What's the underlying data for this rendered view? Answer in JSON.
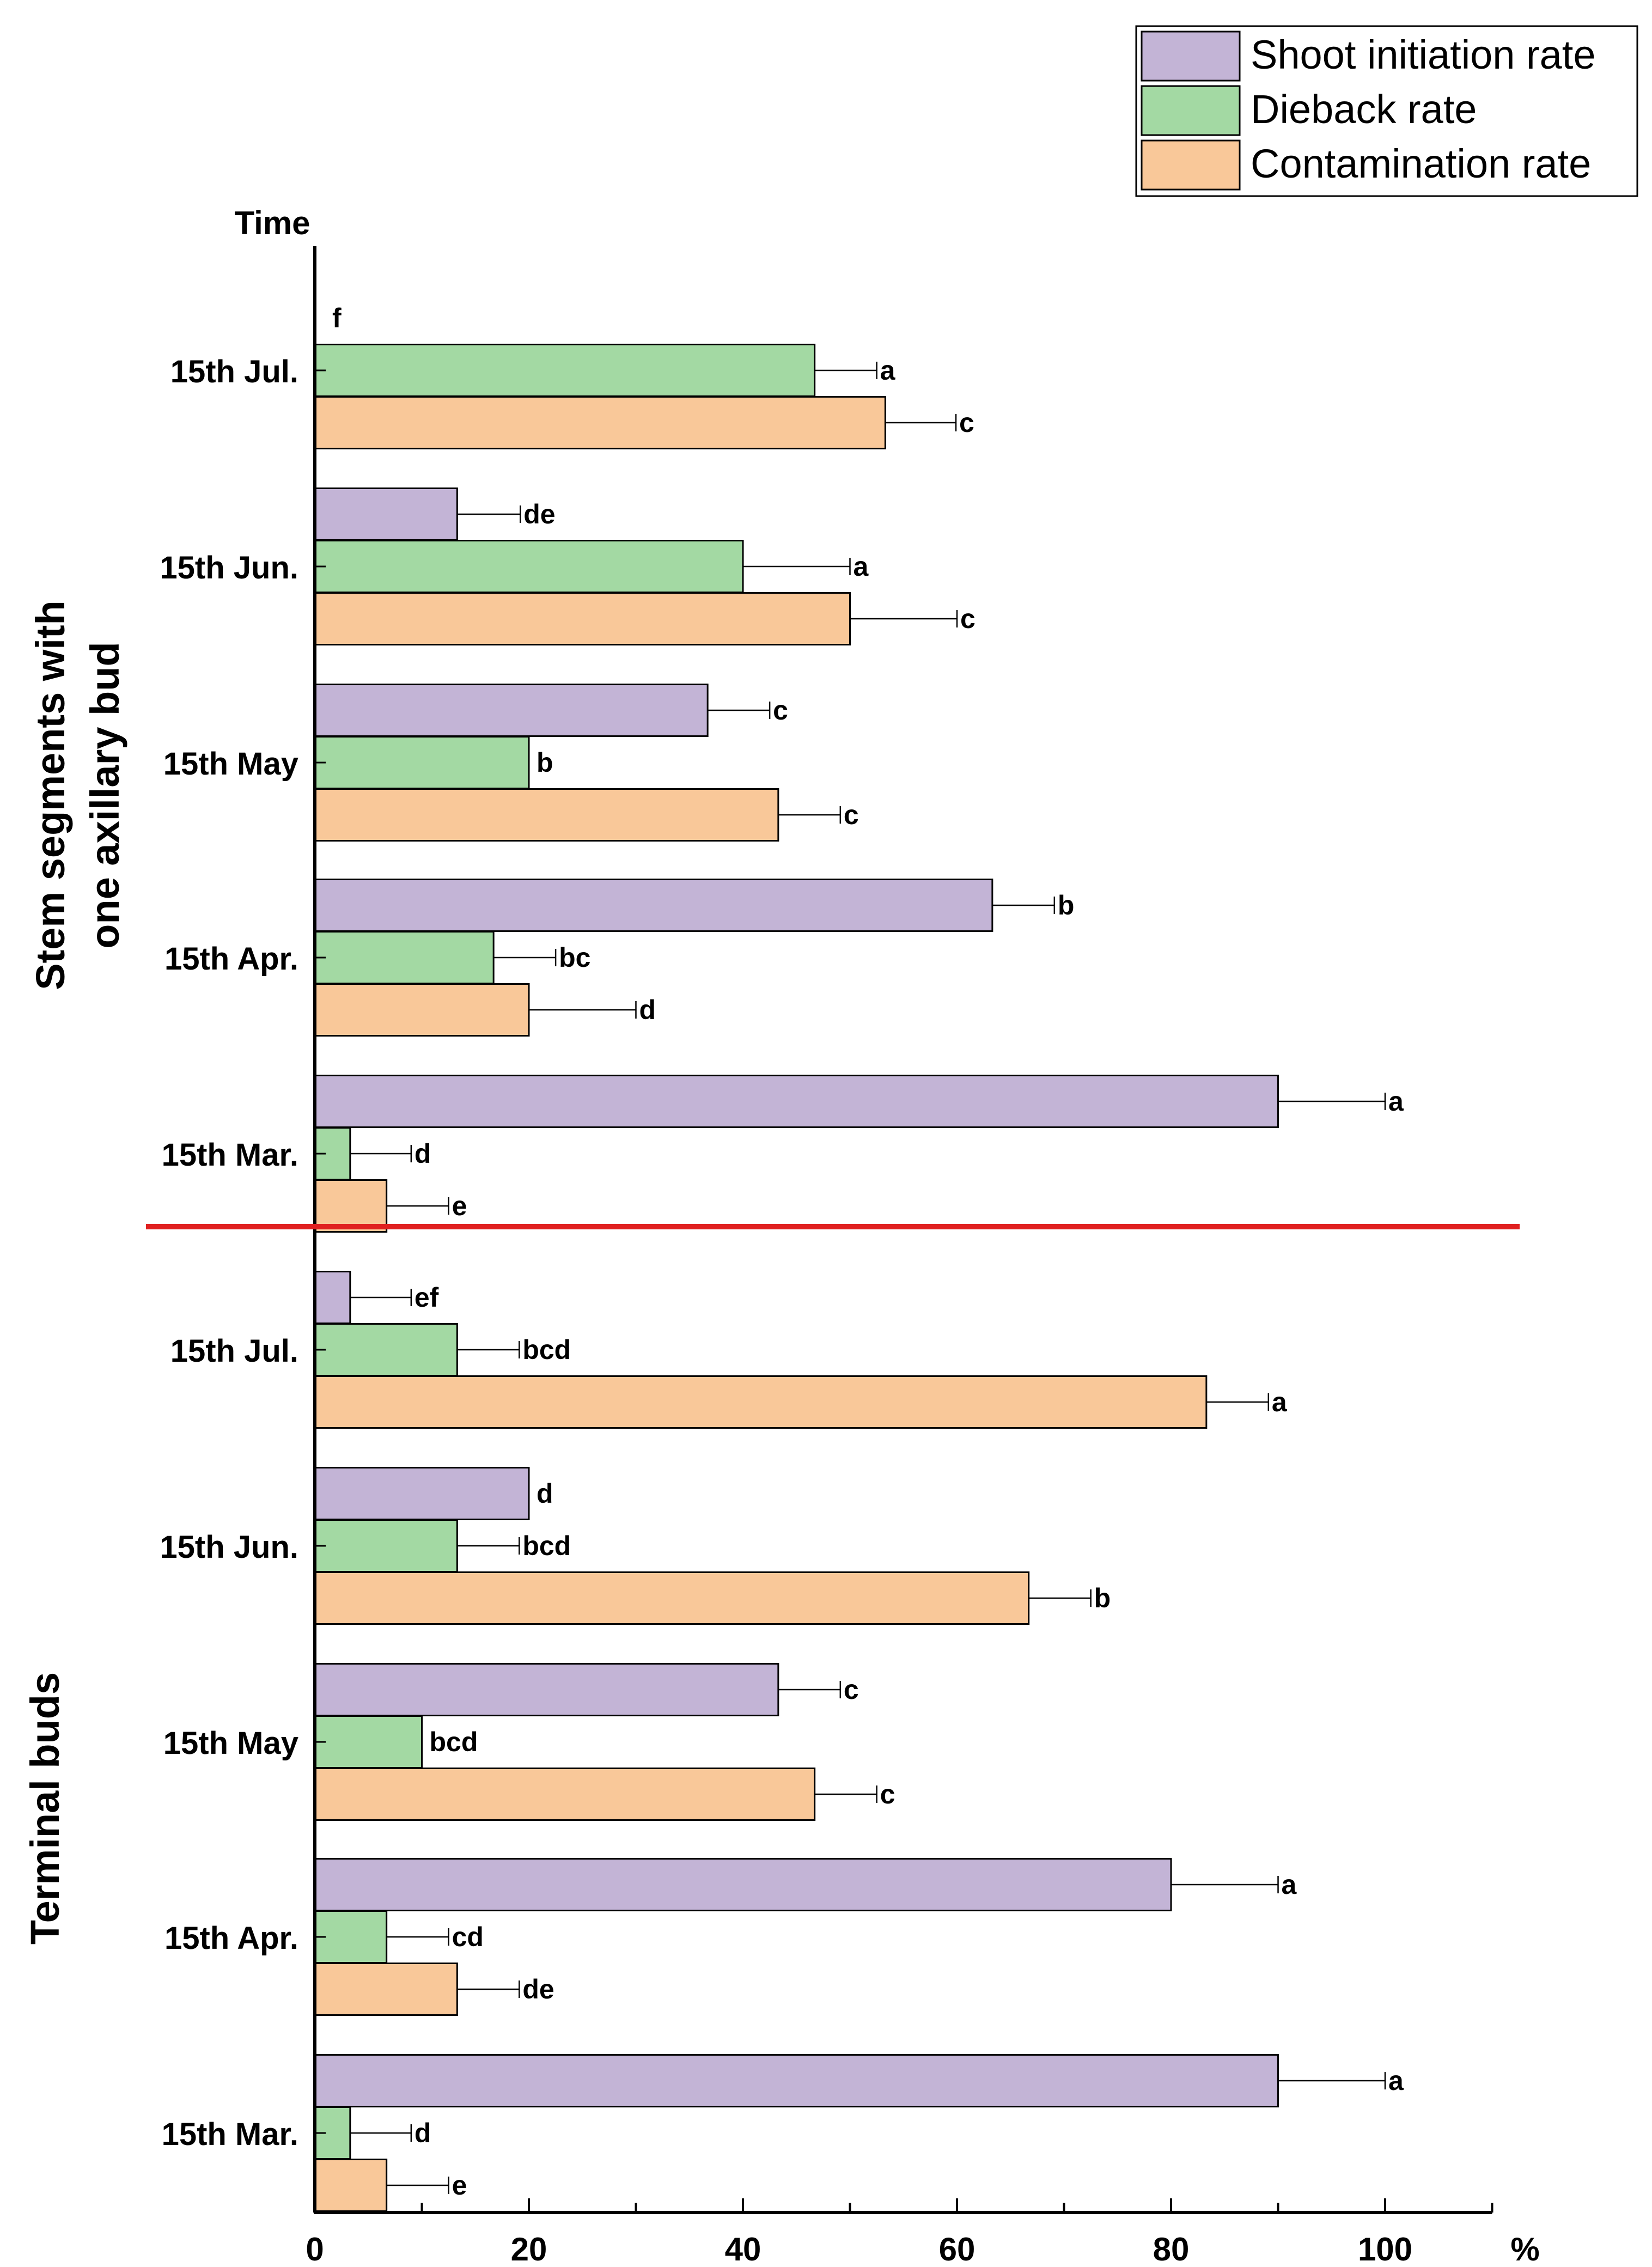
{
  "chart_data": {
    "type": "bar",
    "orientation": "horizontal",
    "title": "",
    "ylabel": "Time",
    "xlabel": "%",
    "xlim": [
      0,
      110
    ],
    "x_ticks": [
      0,
      20,
      40,
      60,
      80,
      100
    ],
    "x_tick_labels": [
      "0",
      "20",
      "40",
      "60",
      "80",
      "100"
    ],
    "legend": {
      "position": "top-right",
      "entries": [
        {
          "name": "Shoot initiation rate",
          "color": "#c3b4d6"
        },
        {
          "name": "Dieback rate",
          "color": "#a3d9a3"
        },
        {
          "name": "Contamination rate",
          "color": "#f9c899"
        }
      ]
    },
    "series_names": [
      "Shoot initiation rate",
      "Dieback rate",
      "Contamination rate"
    ],
    "divider_color": "#e02020",
    "groups": [
      {
        "name": "Stem segments with one axillary bud",
        "name_lines": [
          "Stem segments with",
          "one axillary bud"
        ],
        "categories": [
          {
            "label": "15th Jul.",
            "bars": [
              {
                "value": 0,
                "error": 0,
                "letter": "f"
              },
              {
                "value": 46.7,
                "error": 5.8,
                "letter": "a"
              },
              {
                "value": 53.3,
                "error": 6.6,
                "letter": "c"
              }
            ]
          },
          {
            "label": "15th Jun.",
            "bars": [
              {
                "value": 13.3,
                "error": 5.9,
                "letter": "de"
              },
              {
                "value": 40.0,
                "error": 10.0,
                "letter": "a"
              },
              {
                "value": 50.0,
                "error": 10.0,
                "letter": "c"
              }
            ]
          },
          {
            "label": "15th May",
            "bars": [
              {
                "value": 36.7,
                "error": 5.8,
                "letter": "c"
              },
              {
                "value": 20.0,
                "error": 0,
                "letter": "b"
              },
              {
                "value": 43.3,
                "error": 5.8,
                "letter": "c"
              }
            ]
          },
          {
            "label": "15th Apr.",
            "bars": [
              {
                "value": 63.3,
                "error": 5.8,
                "letter": "b"
              },
              {
                "value": 16.7,
                "error": 5.8,
                "letter": "bc"
              },
              {
                "value": 20.0,
                "error": 10.0,
                "letter": "d"
              }
            ]
          },
          {
            "label": "15th Mar.",
            "bars": [
              {
                "value": 90.0,
                "error": 10.0,
                "letter": "a"
              },
              {
                "value": 3.3,
                "error": 5.7,
                "letter": "d"
              },
              {
                "value": 6.7,
                "error": 5.8,
                "letter": "e"
              }
            ]
          }
        ]
      },
      {
        "name": "Terminal buds",
        "name_lines": [
          "Terminal buds"
        ],
        "categories": [
          {
            "label": "15th Jul.",
            "bars": [
              {
                "value": 3.3,
                "error": 5.7,
                "letter": "ef"
              },
              {
                "value": 13.3,
                "error": 5.8,
                "letter": "bcd"
              },
              {
                "value": 83.3,
                "error": 5.8,
                "letter": "a"
              }
            ]
          },
          {
            "label": "15th Jun.",
            "bars": [
              {
                "value": 20.0,
                "error": 0,
                "letter": "d"
              },
              {
                "value": 13.3,
                "error": 5.8,
                "letter": "bcd"
              },
              {
                "value": 66.7,
                "error": 5.8,
                "letter": "b"
              }
            ]
          },
          {
            "label": "15th May",
            "bars": [
              {
                "value": 43.3,
                "error": 5.8,
                "letter": "c"
              },
              {
                "value": 10.0,
                "error": 0,
                "letter": "bcd"
              },
              {
                "value": 46.7,
                "error": 5.8,
                "letter": "c"
              }
            ]
          },
          {
            "label": "15th Apr.",
            "bars": [
              {
                "value": 80.0,
                "error": 10.0,
                "letter": "a"
              },
              {
                "value": 6.7,
                "error": 5.8,
                "letter": "cd"
              },
              {
                "value": 13.3,
                "error": 5.8,
                "letter": "de"
              }
            ]
          },
          {
            "label": "15th Mar.",
            "bars": [
              {
                "value": 90.0,
                "error": 10.0,
                "letter": "a"
              },
              {
                "value": 3.3,
                "error": 5.7,
                "letter": "d"
              },
              {
                "value": 6.7,
                "error": 5.8,
                "letter": "e"
              }
            ]
          }
        ]
      }
    ]
  }
}
